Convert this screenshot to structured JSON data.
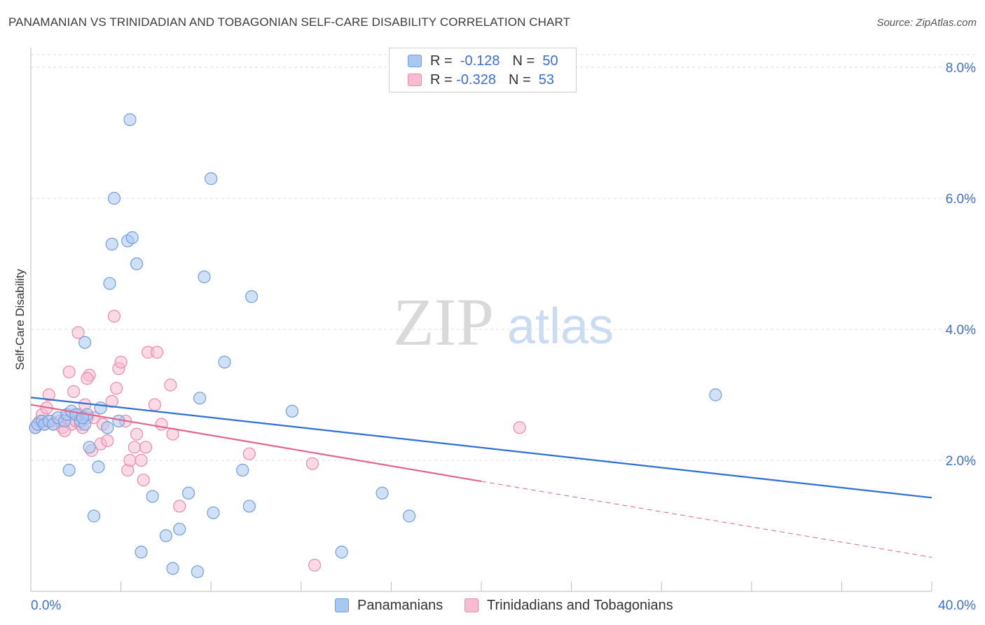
{
  "title": "PANAMANIAN VS TRINIDADIAN AND TOBAGONIAN SELF-CARE DISABILITY CORRELATION CHART",
  "source": "Source: ZipAtlas.com",
  "watermark": {
    "zip": "ZIP",
    "atlas": "atlas"
  },
  "colors": {
    "blue_fill": "#a9c8f0",
    "blue_stroke": "#6f9fe0",
    "blue_line": "#2e6fd3",
    "pink_fill": "#f7bcd0",
    "pink_stroke": "#ea8aab",
    "pink_line": "#e2658f",
    "axis_label": "#3b6fd1",
    "grid": "#dddddd"
  },
  "legend": {
    "rows": [
      {
        "r_label": "R =",
        "r_value": "-0.128",
        "n_label": "N =",
        "n_value": "50",
        "color": "blue"
      },
      {
        "r_label": "R =",
        "r_value": "-0.328",
        "n_label": "N =",
        "n_value": "53",
        "color": "pink"
      }
    ]
  },
  "bottom_legend": [
    {
      "label": "Panamanians",
      "color": "blue"
    },
    {
      "label": "Trinidadians and Tobagonians",
      "color": "pink"
    }
  ],
  "chart_data": {
    "type": "scatter",
    "title": "PANAMANIAN VS TRINIDADIAN AND TOBAGONIAN SELF-CARE DISABILITY CORRELATION CHART",
    "xlabel": "",
    "ylabel": "Self-Care Disability",
    "xlim": [
      0,
      40
    ],
    "ylim": [
      0,
      8.3
    ],
    "x_tick_labels": [
      "0.0%",
      "40.0%"
    ],
    "y_ticks": [
      2,
      4,
      6,
      8
    ],
    "y_tick_labels": [
      "2.0%",
      "4.0%",
      "6.0%",
      "8.0%"
    ],
    "grid": "horizontal dashed",
    "legend_placement": "top-center and bottom",
    "series": [
      {
        "name": "Panamanians",
        "color": "blue",
        "points": [
          [
            0.2,
            2.5
          ],
          [
            0.3,
            2.55
          ],
          [
            0.5,
            2.6
          ],
          [
            0.6,
            2.55
          ],
          [
            0.8,
            2.6
          ],
          [
            1.0,
            2.55
          ],
          [
            1.2,
            2.65
          ],
          [
            1.5,
            2.6
          ],
          [
            1.6,
            2.7
          ],
          [
            1.8,
            2.75
          ],
          [
            2.0,
            2.7
          ],
          [
            2.2,
            2.6
          ],
          [
            2.4,
            2.55
          ],
          [
            2.5,
            2.7
          ],
          [
            2.3,
            2.65
          ],
          [
            2.4,
            3.8
          ],
          [
            3.1,
            2.8
          ],
          [
            3.4,
            2.5
          ],
          [
            3.9,
            2.6
          ],
          [
            2.6,
            2.2
          ],
          [
            1.7,
            1.85
          ],
          [
            3.0,
            1.9
          ],
          [
            2.8,
            1.15
          ],
          [
            3.5,
            4.7
          ],
          [
            3.6,
            5.3
          ],
          [
            3.7,
            6.0
          ],
          [
            4.3,
            5.35
          ],
          [
            4.5,
            5.4
          ],
          [
            4.7,
            5.0
          ],
          [
            4.4,
            7.2
          ],
          [
            4.9,
            0.6
          ],
          [
            5.4,
            1.45
          ],
          [
            6.0,
            0.85
          ],
          [
            6.3,
            0.35
          ],
          [
            6.6,
            0.95
          ],
          [
            7.0,
            1.5
          ],
          [
            7.5,
            2.95
          ],
          [
            7.4,
            0.3
          ],
          [
            7.7,
            4.8
          ],
          [
            8.0,
            6.3
          ],
          [
            8.1,
            1.2
          ],
          [
            8.6,
            3.5
          ],
          [
            9.4,
            1.85
          ],
          [
            9.8,
            4.5
          ],
          [
            9.7,
            1.3
          ],
          [
            11.6,
            2.75
          ],
          [
            13.8,
            0.6
          ],
          [
            15.6,
            1.5
          ],
          [
            16.8,
            1.15
          ],
          [
            30.4,
            3.0
          ]
        ]
      },
      {
        "name": "Trinidadians and Tobagonians",
        "color": "pink",
        "points": [
          [
            0.2,
            2.5
          ],
          [
            0.4,
            2.6
          ],
          [
            0.5,
            2.7
          ],
          [
            0.6,
            2.55
          ],
          [
            0.7,
            2.8
          ],
          [
            0.9,
            2.6
          ],
          [
            1.0,
            2.55
          ],
          [
            0.8,
            3.0
          ],
          [
            1.3,
            2.6
          ],
          [
            1.4,
            2.5
          ],
          [
            1.6,
            2.65
          ],
          [
            1.8,
            2.55
          ],
          [
            2.0,
            2.6
          ],
          [
            2.1,
            2.7
          ],
          [
            2.2,
            2.55
          ],
          [
            2.3,
            2.5
          ],
          [
            1.7,
            3.35
          ],
          [
            1.9,
            3.05
          ],
          [
            2.4,
            2.85
          ],
          [
            2.6,
            3.3
          ],
          [
            2.1,
            3.95
          ],
          [
            2.5,
            3.25
          ],
          [
            2.8,
            2.65
          ],
          [
            2.7,
            2.15
          ],
          [
            3.1,
            2.25
          ],
          [
            3.2,
            2.55
          ],
          [
            3.4,
            2.3
          ],
          [
            3.6,
            2.9
          ],
          [
            3.7,
            4.2
          ],
          [
            3.8,
            3.1
          ],
          [
            3.9,
            3.4
          ],
          [
            4.0,
            3.5
          ],
          [
            4.2,
            2.6
          ],
          [
            4.3,
            1.85
          ],
          [
            4.4,
            2.0
          ],
          [
            4.6,
            2.2
          ],
          [
            4.7,
            2.4
          ],
          [
            4.9,
            2.0
          ],
          [
            5.0,
            1.7
          ],
          [
            5.1,
            2.2
          ],
          [
            5.2,
            3.65
          ],
          [
            5.5,
            2.85
          ],
          [
            5.6,
            3.65
          ],
          [
            5.8,
            2.55
          ],
          [
            6.2,
            3.15
          ],
          [
            6.3,
            2.4
          ],
          [
            6.6,
            1.3
          ],
          [
            9.7,
            2.1
          ],
          [
            12.5,
            1.95
          ],
          [
            12.6,
            0.4
          ],
          [
            21.7,
            2.5
          ],
          [
            1.5,
            2.45
          ],
          [
            2.5,
            2.65
          ]
        ]
      }
    ],
    "trend_lines": [
      {
        "series": "Panamanians",
        "x": [
          0,
          40
        ],
        "y": [
          2.96,
          1.43
        ],
        "style": "solid"
      },
      {
        "series": "Trinidadians and Tobagonians",
        "x": [
          0,
          20
        ],
        "y": [
          2.85,
          1.68
        ],
        "style": "solid"
      },
      {
        "series": "Trinidadians and Tobagonians",
        "x": [
          20,
          40
        ],
        "y": [
          1.68,
          0.52
        ],
        "style": "dashed"
      }
    ]
  }
}
